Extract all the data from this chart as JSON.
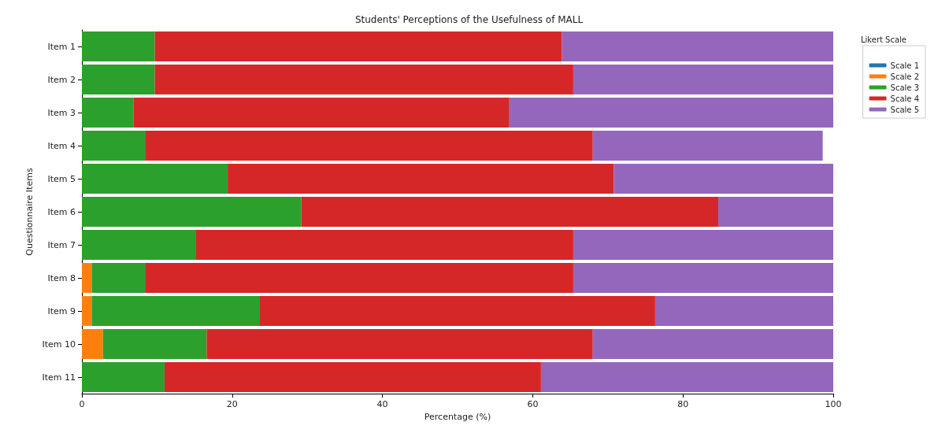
{
  "chart_data": {
    "type": "bar",
    "orientation": "horizontal",
    "stacked": true,
    "title": "Students' Perceptions of the Usefulness of MALL",
    "xlabel": "Percentage (%)",
    "ylabel": "Questionnaire Items",
    "legend_title": "Likert Scale",
    "legend": "top right",
    "grid": false,
    "categories": [
      "Item 1",
      "Item 2",
      "Item 3",
      "Item 4",
      "Item 5",
      "Item 6",
      "Item 7",
      "Item 8",
      "Item 9",
      "Item 10",
      "Item 11"
    ],
    "xlim": [
      0,
      100
    ],
    "xticks": [
      0,
      20,
      40,
      60,
      80,
      100
    ],
    "series": [
      {
        "name": "Scale 1",
        "color": "#1f77b4",
        "values": [
          0,
          0,
          0,
          0,
          0,
          0,
          0,
          0,
          0,
          0,
          0
        ]
      },
      {
        "name": "Scale 2",
        "color": "#ff7f0e",
        "values": [
          0,
          0,
          0,
          0,
          0,
          0,
          0,
          1.3,
          1.3,
          2.8,
          0
        ]
      },
      {
        "name": "Scale 3",
        "color": "#2ca02c",
        "values": [
          9.7,
          9.7,
          6.9,
          8.4,
          19.4,
          29.2,
          15.2,
          7.1,
          22.3,
          13.8,
          11.0
        ]
      },
      {
        "name": "Scale 4",
        "color": "#d62728",
        "values": [
          54.2,
          55.7,
          50.0,
          59.6,
          51.4,
          55.5,
          50.2,
          57.0,
          52.7,
          51.4,
          50.1
        ]
      },
      {
        "name": "Scale 5",
        "color": "#9467bd",
        "values": [
          36.1,
          34.6,
          43.1,
          30.6,
          29.2,
          15.3,
          34.6,
          34.6,
          23.7,
          32.0,
          38.9
        ]
      }
    ]
  }
}
